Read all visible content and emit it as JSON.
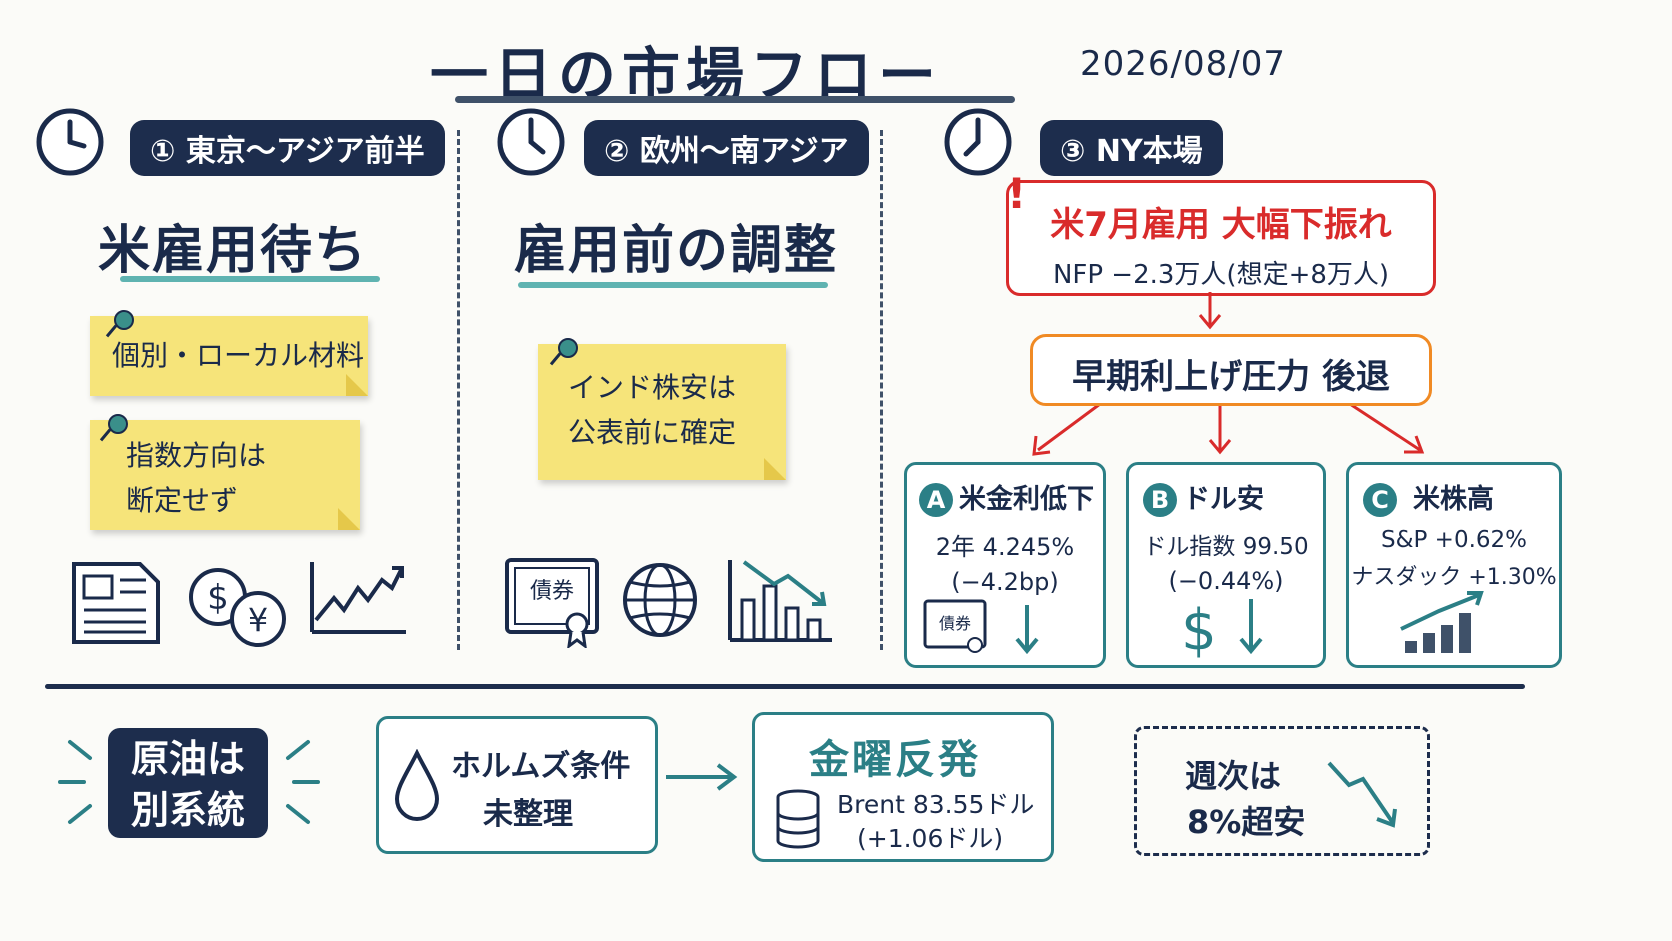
{
  "header": {
    "title": "一日の市場フロー",
    "date": "2026/08/07"
  },
  "columns": [
    {
      "label": "① 東京〜アジア前半",
      "headline": "米雇用待ち",
      "notes": [
        "個別・ローカル材料",
        "指数方向は",
        "断定せず"
      ]
    },
    {
      "label": "② 欧州〜南アジア",
      "headline": "雇用前の調整",
      "notes": [
        "インド株安は",
        "公表前に確定"
      ],
      "bond_icon_text": "債券"
    },
    {
      "label": "③ NY本場",
      "alert": {
        "title": "米7月雇用 大幅下振れ",
        "detail": "NFP −2.3万人(想定+8万人)"
      },
      "outcome": "早期利上げ圧力 後退",
      "results": [
        {
          "letter": "A",
          "title": "米金利低下",
          "line1": "2年 4.245%",
          "line2": "(−4.2bp)",
          "icon_text": "債券"
        },
        {
          "letter": "B",
          "title": "ドル安",
          "line1": "ドル指数 99.50",
          "line2": "(−0.44%)",
          "icon_text": "$"
        },
        {
          "letter": "C",
          "title": "米株高",
          "line1": "S&P +0.62%",
          "line2": "ナスダック +1.30%"
        }
      ]
    }
  ],
  "footer": {
    "oil_label_1": "原油は",
    "oil_label_2": "別系統",
    "hormuz_1": "ホルムズ条件",
    "hormuz_2": "未整理",
    "friday_title": "金曜反発",
    "brent_1": "Brent 83.55ドル",
    "brent_2": "(+1.06ドル)",
    "weekly_1": "週次は",
    "weekly_2": "8%超安"
  },
  "colors": {
    "navy": "#1d2d4d",
    "teal": "#2b7f86",
    "red": "#d92b2b",
    "orange": "#f08a24",
    "note": "#f6e47a"
  }
}
